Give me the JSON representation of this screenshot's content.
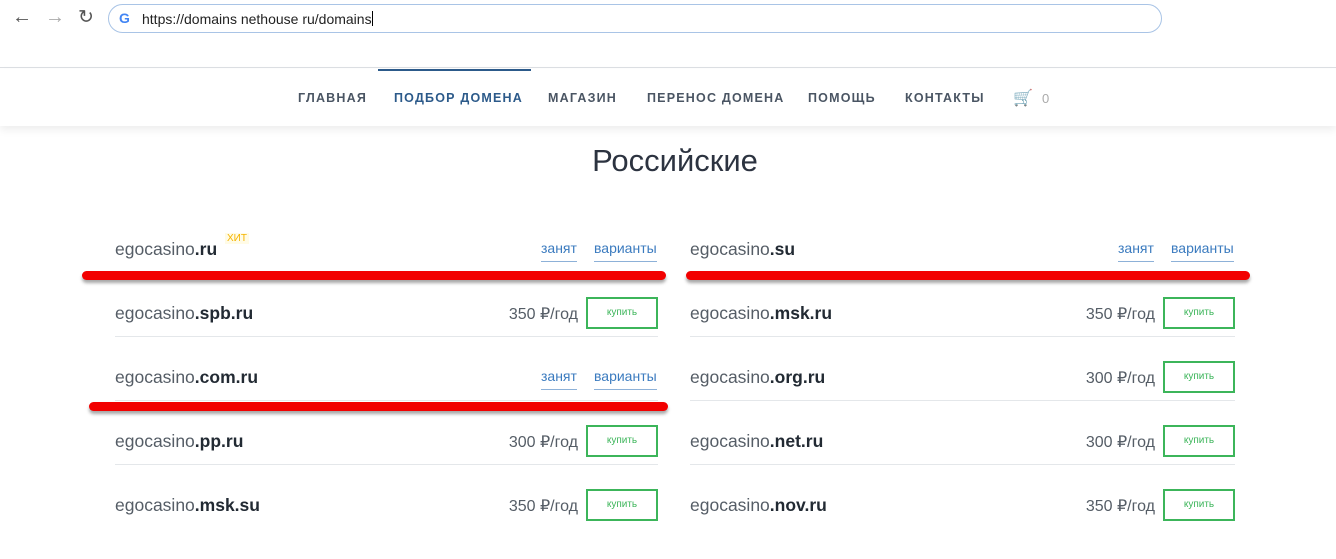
{
  "browser": {
    "url": "https://domains nethouse ru/domains",
    "back_icon": "arrow-left",
    "forward_icon": "arrow-right",
    "reload_icon": "reload"
  },
  "nav": {
    "items": [
      {
        "label": "ГЛАВНАЯ"
      },
      {
        "label": "ПОДБОР ДОМЕНА",
        "active": true
      },
      {
        "label": "МАГАЗИН"
      },
      {
        "label": "ПЕРЕНОС ДОМЕНА"
      },
      {
        "label": "ПОМОЩЬ"
      },
      {
        "label": "КОНТАКТЫ"
      }
    ],
    "cart_count": "0"
  },
  "section_title": "Российские",
  "labels": {
    "taken": "занят",
    "variants": "варианты",
    "buy": "купить",
    "hit": "ХИТ"
  },
  "domains": [
    {
      "name": "egocasino",
      "zone": ".ru",
      "status": "taken",
      "badge": "ХИТ"
    },
    {
      "name": "egocasino",
      "zone": ".su",
      "status": "taken"
    },
    {
      "name": "egocasino",
      "zone": ".spb.ru",
      "price": "350 ₽/год"
    },
    {
      "name": "egocasino",
      "zone": ".msk.ru",
      "price": "350 ₽/год"
    },
    {
      "name": "egocasino",
      "zone": ".com.ru",
      "status": "taken"
    },
    {
      "name": "egocasino",
      "zone": ".org.ru",
      "price": "300 ₽/год"
    },
    {
      "name": "egocasino",
      "zone": ".pp.ru",
      "price": "300 ₽/год"
    },
    {
      "name": "egocasino",
      "zone": ".net.ru",
      "price": "300 ₽/год"
    },
    {
      "name": "egocasino",
      "zone": ".msk.su",
      "price": "350 ₽/год"
    },
    {
      "name": "egocasino",
      "zone": ".nov.ru",
      "price": "350 ₽/год"
    }
  ],
  "colors": {
    "accent": "#2c5a8a",
    "buy": "#3cb55a",
    "link": "#3b7bbf",
    "annotation": "#f20000"
  }
}
